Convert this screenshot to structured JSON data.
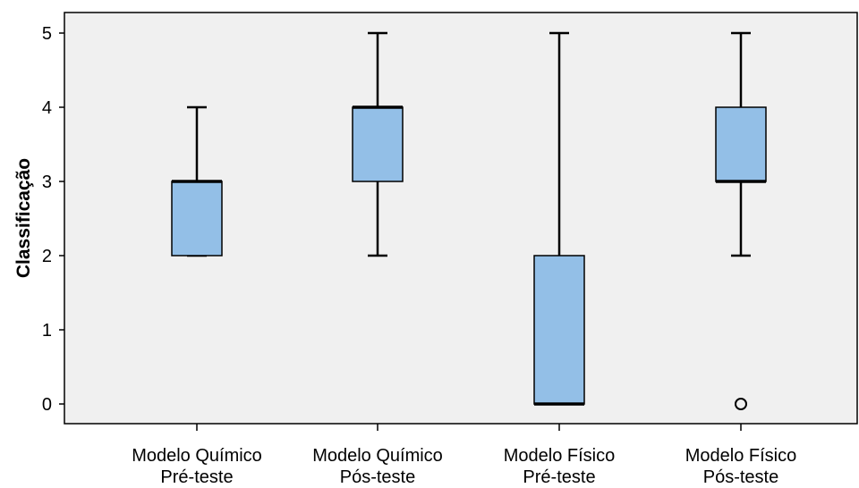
{
  "chart_data": {
    "type": "boxplot",
    "ylabel": "Classificação",
    "ylim": [
      -0.25,
      5.25
    ],
    "yticks": [
      "0",
      "1",
      "2",
      "3",
      "4",
      "5"
    ],
    "categories": [
      {
        "line1": "Modelo Químico",
        "line2": "Pré-teste"
      },
      {
        "line1": "Modelo Químico",
        "line2": "Pós-teste"
      },
      {
        "line1": "Modelo Físico",
        "line2": "Pré-teste"
      },
      {
        "line1": "Modelo Físico",
        "line2": "Pós-teste"
      }
    ],
    "boxes": [
      {
        "whisker_low": 2,
        "q1": 2,
        "median": 3,
        "q3": 3,
        "whisker_high": 4,
        "outliers": []
      },
      {
        "whisker_low": 2,
        "q1": 3,
        "median": 4,
        "q3": 4,
        "whisker_high": 5,
        "outliers": []
      },
      {
        "whisker_low": 0,
        "q1": 0,
        "median": 0,
        "q3": 2,
        "whisker_high": 5,
        "outliers": []
      },
      {
        "whisker_low": 2,
        "q1": 3,
        "median": 3,
        "q3": 4,
        "whisker_high": 5,
        "outliers": [
          0
        ]
      }
    ],
    "colors": {
      "box_fill": "#93bfe7",
      "plot_background": "#f0f0f0",
      "line": "#000000"
    }
  }
}
